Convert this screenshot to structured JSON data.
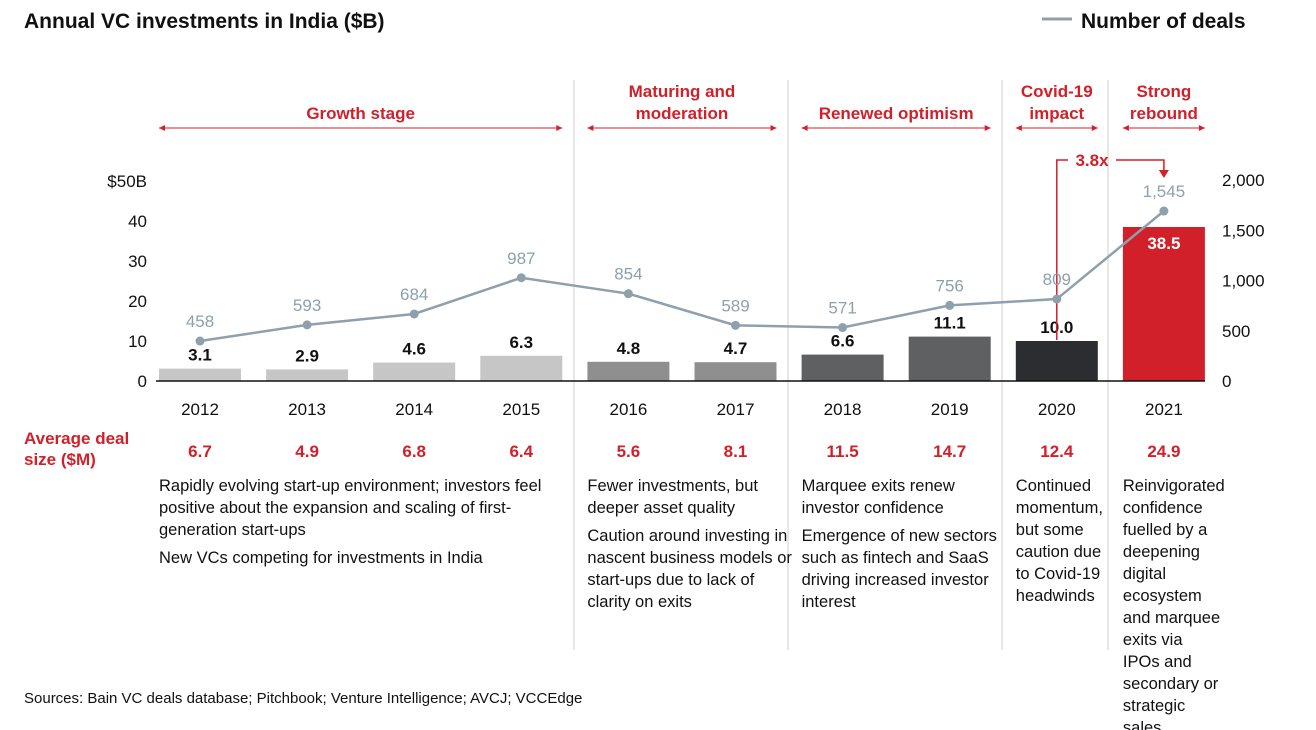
{
  "chart_data": {
    "type": "bar",
    "title": "Annual VC investments in India ($B)",
    "legend": {
      "label": "Number of deals",
      "placement": "top-right"
    },
    "categories": [
      "2012",
      "2013",
      "2014",
      "2015",
      "2016",
      "2017",
      "2018",
      "2019",
      "2020",
      "2021"
    ],
    "series": [
      {
        "name": "VC investments ($B)",
        "type": "bar",
        "axis": "left",
        "values": [
          3.1,
          2.9,
          4.6,
          6.3,
          4.8,
          4.7,
          6.6,
          11.1,
          10.0,
          38.5
        ],
        "labels": [
          "3.1",
          "2.9",
          "4.6",
          "6.3",
          "4.8",
          "4.7",
          "6.6",
          "11.1",
          "10.0",
          "38.5"
        ]
      },
      {
        "name": "Number of deals",
        "type": "line",
        "axis": "right",
        "values": [
          458,
          593,
          684,
          987,
          854,
          589,
          571,
          756,
          809,
          1545
        ],
        "labels": [
          "458",
          "593",
          "684",
          "987",
          "854",
          "589",
          "571",
          "756",
          "809",
          "1,545"
        ]
      }
    ],
    "bar_colors": [
      "#c6c6c6",
      "#c6c6c6",
      "#c6c6c6",
      "#c6c6c6",
      "#8f8f8f",
      "#8f8f8f",
      "#5f6062",
      "#5f6062",
      "#2b2d30",
      "#d2202a"
    ],
    "line_color": "#8fa0ad",
    "accent_color": "#d2202a",
    "left_axis": {
      "ylim": [
        0,
        50
      ],
      "ticks": [
        "0",
        "10",
        "20",
        "30",
        "40",
        "$50B"
      ]
    },
    "right_axis": {
      "ylim": [
        0,
        2000
      ],
      "ticks": [
        "0",
        "500",
        "1,000",
        "1,500",
        "2,000"
      ]
    },
    "phases": [
      {
        "label": [
          "Growth stage"
        ],
        "from": 0,
        "to": 3
      },
      {
        "label": [
          "Maturing and",
          "moderation"
        ],
        "from": 4,
        "to": 5
      },
      {
        "label": [
          "Renewed optimism"
        ],
        "from": 6,
        "to": 7
      },
      {
        "label": [
          "Covid-19",
          "impact"
        ],
        "from": 8,
        "to": 8
      },
      {
        "label": [
          "Strong",
          "rebound"
        ],
        "from": 9,
        "to": 9
      }
    ],
    "annotation": {
      "label": "3.8x",
      "from": "2020",
      "to": "2021"
    },
    "avg_deal_size": {
      "label": [
        "Average deal",
        "size ($M)"
      ],
      "values": [
        "6.7",
        "4.9",
        "6.8",
        "6.4",
        "5.6",
        "8.1",
        "11.5",
        "14.7",
        "12.4",
        "24.9"
      ]
    },
    "notes": [
      {
        "from": 0,
        "paragraphs": [
          "Rapidly evolving start-up environment; investors feel positive about the expansion and scaling of first-generation start-ups",
          "New VCs competing for investments in India"
        ]
      },
      {
        "from": 4,
        "paragraphs": [
          "Fewer investments, but deeper asset quality",
          "Caution around investing in nascent business models or start-ups due to lack of clarity on exits"
        ]
      },
      {
        "from": 6,
        "paragraphs": [
          "Marquee exits renew investor confidence",
          "Emergence of new sectors such as fintech and SaaS driving increased investor interest"
        ]
      },
      {
        "from": 8,
        "paragraphs": [
          "Continued momentum, but some caution due to Covid-19 headwinds"
        ]
      },
      {
        "from": 9,
        "paragraphs": [
          "Reinvigorated confidence fuelled by a deepening digital ecosystem and marquee exits via IPOs and secondary or strategic sales"
        ]
      }
    ],
    "source": "Sources: Bain VC deals database; Pitchbook; Venture Intelligence; AVCJ; VCCEdge"
  }
}
